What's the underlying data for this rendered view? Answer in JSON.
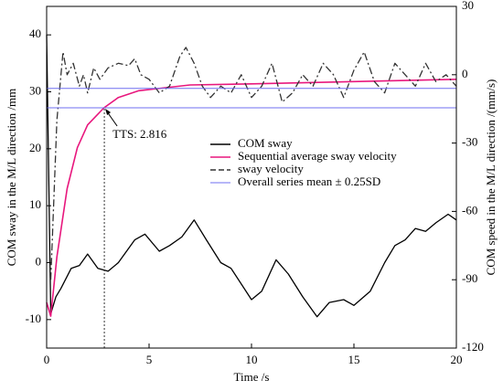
{
  "chart_data": {
    "type": "line",
    "xlabel": "Time /s",
    "ylabel": "COM sway in the M/L direction /mm",
    "y2label": "COM speed in the M/L direction /(mm/s)",
    "xlim": [
      0,
      20
    ],
    "xticks": [
      0,
      5,
      10,
      15,
      20
    ],
    "ylim": [
      -15,
      45
    ],
    "yticks": [
      -10,
      0,
      10,
      20,
      30,
      40
    ],
    "y2lim": [
      -120,
      30
    ],
    "y2ticks": [
      30,
      0,
      -30,
      -60,
      -90,
      -120
    ],
    "legend": "center",
    "series": [
      {
        "name": "COM sway",
        "color": "#000000",
        "linestyle": "solid",
        "axis": "y",
        "x": [
          0,
          0.2,
          0.45,
          0.7,
          1.2,
          1.6,
          2.0,
          2.5,
          3.0,
          3.5,
          4.3,
          4.8,
          5.5,
          6.0,
          6.6,
          7.2,
          7.8,
          8.5,
          9.0,
          10.0,
          10.5,
          11.2,
          11.8,
          12.5,
          13.2,
          13.8,
          14.5,
          15.0,
          15.8,
          16.5,
          17.0,
          17.5,
          18.0,
          18.5,
          19.0,
          19.6,
          20.0
        ],
        "values": [
          40,
          -9,
          -6,
          -4.5,
          -1,
          -0.5,
          1.5,
          -1,
          -1.5,
          0,
          4,
          5,
          2,
          3,
          4.5,
          7.5,
          4,
          0,
          -1,
          -6.5,
          -5,
          0.5,
          -2,
          -6,
          -9.5,
          -7,
          -6.5,
          -7.5,
          -5,
          0,
          3,
          4,
          6,
          5.5,
          7,
          8.5,
          7.5
        ]
      },
      {
        "name": "Sequential average sway velocity",
        "color": "#e8177d",
        "linestyle": "solid",
        "axis": "y2",
        "x": [
          0,
          0.2,
          0.5,
          1.0,
          1.5,
          2.0,
          2.8,
          3.5,
          4.5,
          6.0,
          7.0,
          10.0,
          15.0,
          20.0
        ],
        "values": [
          -100,
          -106,
          -80,
          -50,
          -32,
          -22,
          -14.5,
          -10,
          -7,
          -5.5,
          -4.5,
          -4,
          -3,
          -2
        ]
      },
      {
        "name": "sway velocity",
        "color": "#333333",
        "linestyle": "dashdot",
        "axis": "y2",
        "x": [
          0.2,
          0.5,
          0.8,
          1.0,
          1.3,
          1.6,
          1.8,
          2.0,
          2.3,
          2.6,
          3.0,
          3.5,
          4.0,
          4.3,
          4.6,
          5.0,
          5.5,
          6.0,
          6.5,
          6.8,
          7.2,
          7.6,
          8.0,
          8.5,
          9.0,
          9.5,
          10.0,
          10.5,
          11.0,
          11.5,
          12.0,
          12.5,
          13.0,
          13.5,
          14.0,
          14.5,
          15.0,
          15.5,
          16.0,
          16.5,
          17.0,
          17.5,
          18.0,
          18.5,
          19.0,
          19.5,
          20.0
        ],
        "values": [
          -90,
          -20,
          10,
          0,
          5,
          -5,
          0,
          -8,
          3,
          -2,
          3,
          5,
          4,
          7,
          0,
          -2,
          -8,
          -5,
          8,
          12,
          5,
          -5,
          -10,
          -5,
          -8,
          0,
          -10,
          -5,
          5,
          -12,
          -8,
          0,
          -5,
          5,
          0,
          -10,
          2,
          10,
          -3,
          -8,
          5,
          0,
          -5,
          5,
          -3,
          0,
          -5
        ]
      },
      {
        "name": "Overall series mean ± 0.25SD",
        "color": "#6f6ff0",
        "linestyle": "hline",
        "axis": "y2",
        "values": [
          -6,
          -14.5
        ]
      }
    ],
    "annotation": {
      "text": "TTS: 2.816",
      "x": 2.816,
      "y": -14.5
    }
  }
}
